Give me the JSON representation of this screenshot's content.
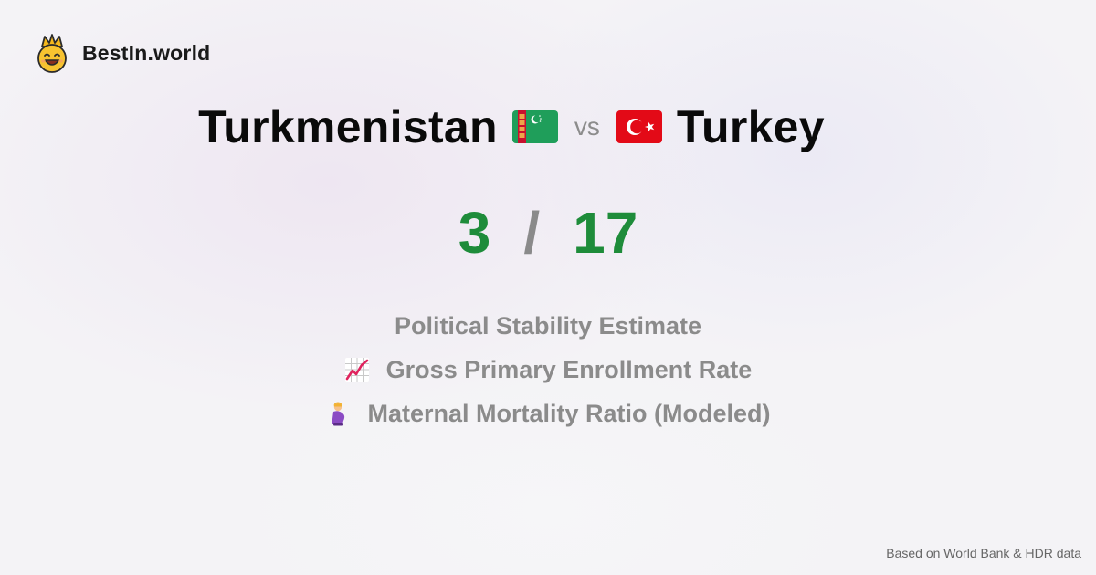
{
  "brand": {
    "name": "BestIn.world",
    "logo_icon": "crowned-smiley-icon"
  },
  "comparison": {
    "left_country": "Turkmenistan",
    "left_flag_icon": "turkmenistan-flag-icon",
    "vs_label": "vs",
    "right_country": "Turkey",
    "right_flag_icon": "turkey-flag-icon"
  },
  "score": {
    "left": "3",
    "separator": "/",
    "right": "17",
    "color": "#1e8c3a"
  },
  "metrics": [
    {
      "label": "Political Stability Estimate"
    },
    {
      "label": "Gross Primary Enrollment Rate",
      "icon": "chart-increasing-icon"
    },
    {
      "label": "Maternal Mortality Ratio (Modeled)",
      "icon": "pregnant-woman-icon"
    }
  ],
  "footer": {
    "source": "Based on World Bank & HDR data"
  }
}
